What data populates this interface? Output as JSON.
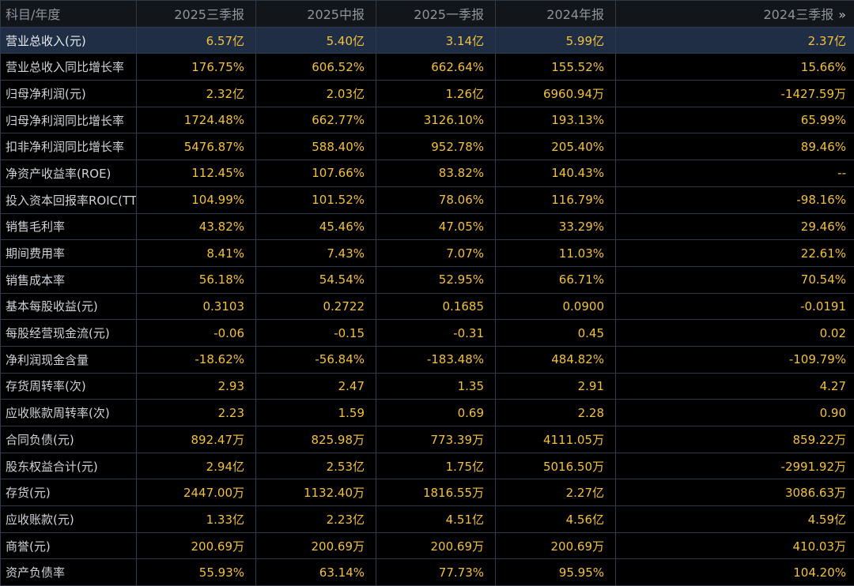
{
  "colors": {
    "background": "#000000",
    "header_bg": "#12161b",
    "highlight_row_bg": "#1f2e44",
    "value_text": "#f0c040",
    "label_text": "#cfd3d8",
    "header_text": "#8d949c",
    "grid_line": "#2c3a4a"
  },
  "header": {
    "label": "科目/年度",
    "columns": [
      "2025三季报",
      "2025中报",
      "2025一季报",
      "2024年报",
      "2024三季报"
    ],
    "more_icon": "»"
  },
  "rows": [
    {
      "label": "营业总收入(元)",
      "values": [
        "6.57亿",
        "5.40亿",
        "3.14亿",
        "5.99亿",
        "2.37亿"
      ]
    },
    {
      "label": "营业总收入同比增长率",
      "values": [
        "176.75%",
        "606.52%",
        "662.64%",
        "155.52%",
        "15.66%"
      ]
    },
    {
      "label": "归母净利润(元)",
      "values": [
        "2.32亿",
        "2.03亿",
        "1.26亿",
        "6960.94万",
        "-1427.59万"
      ]
    },
    {
      "label": "归母净利润同比增长率",
      "values": [
        "1724.48%",
        "662.77%",
        "3126.10%",
        "193.13%",
        "65.99%"
      ]
    },
    {
      "label": "扣非净利润同比增长率",
      "values": [
        "5476.87%",
        "588.40%",
        "952.78%",
        "205.40%",
        "89.46%"
      ]
    },
    {
      "label": "净资产收益率(ROE)",
      "values": [
        "112.45%",
        "107.66%",
        "83.82%",
        "140.43%",
        "--"
      ]
    },
    {
      "label": "投入资本回报率ROIC(TTM)",
      "values": [
        "104.99%",
        "101.52%",
        "78.06%",
        "116.79%",
        "-98.16%"
      ]
    },
    {
      "label": "销售毛利率",
      "values": [
        "43.82%",
        "45.46%",
        "47.05%",
        "33.29%",
        "29.46%"
      ]
    },
    {
      "label": "期间费用率",
      "values": [
        "8.41%",
        "7.43%",
        "7.07%",
        "11.03%",
        "22.61%"
      ]
    },
    {
      "label": "销售成本率",
      "values": [
        "56.18%",
        "54.54%",
        "52.95%",
        "66.71%",
        "70.54%"
      ]
    },
    {
      "label": "基本每股收益(元)",
      "values": [
        "0.3103",
        "0.2722",
        "0.1685",
        "0.0900",
        "-0.0191"
      ]
    },
    {
      "label": "每股经营现金流(元)",
      "values": [
        "-0.06",
        "-0.15",
        "-0.31",
        "0.45",
        "0.02"
      ]
    },
    {
      "label": "净利润现金含量",
      "values": [
        "-18.62%",
        "-56.84%",
        "-183.48%",
        "484.82%",
        "-109.79%"
      ]
    },
    {
      "label": "存货周转率(次)",
      "values": [
        "2.93",
        "2.47",
        "1.35",
        "2.91",
        "4.27"
      ]
    },
    {
      "label": "应收账款周转率(次)",
      "values": [
        "2.23",
        "1.59",
        "0.69",
        "2.28",
        "0.90"
      ]
    },
    {
      "label": "合同负债(元)",
      "values": [
        "892.47万",
        "825.98万",
        "773.39万",
        "4111.05万",
        "859.22万"
      ]
    },
    {
      "label": "股东权益合计(元)",
      "values": [
        "2.94亿",
        "2.53亿",
        "1.75亿",
        "5016.50万",
        "-2991.92万"
      ]
    },
    {
      "label": "存货(元)",
      "values": [
        "2447.00万",
        "1132.40万",
        "1816.55万",
        "2.27亿",
        "3086.63万"
      ]
    },
    {
      "label": "应收账款(元)",
      "values": [
        "1.33亿",
        "2.23亿",
        "4.51亿",
        "4.56亿",
        "4.59亿"
      ]
    },
    {
      "label": "商誉(元)",
      "values": [
        "200.69万",
        "200.69万",
        "200.69万",
        "200.69万",
        "410.03万"
      ]
    },
    {
      "label": "资产负债率",
      "values": [
        "55.93%",
        "63.14%",
        "77.73%",
        "95.95%",
        "104.20%"
      ]
    }
  ]
}
